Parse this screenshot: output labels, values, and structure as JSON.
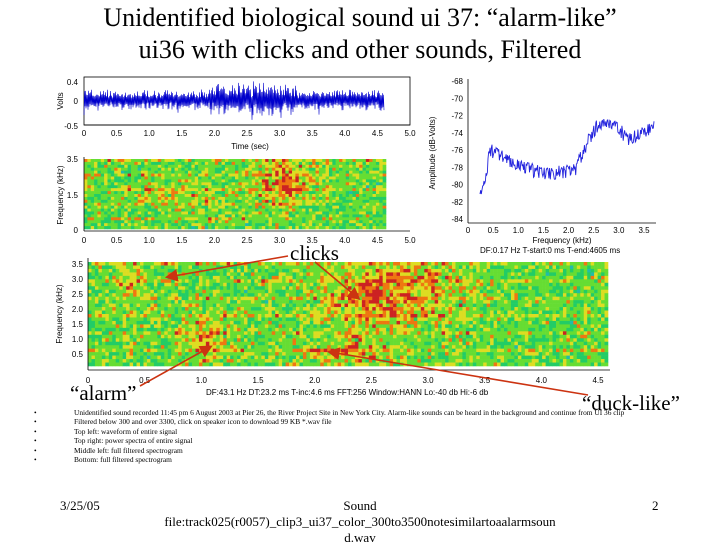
{
  "slide": {
    "title_line1": "Unidentified biological sound ui 37: “alarm-like”",
    "title_line2": "ui36 with clicks and other sounds, Filtered"
  },
  "waveform": {
    "y_ticks": [
      "0.4",
      "0",
      "-0.5"
    ],
    "ylabel": "Volts",
    "x_ticks": [
      "0",
      "0.5",
      "1.0",
      "1.5",
      "2.0",
      "2.5",
      "3.0",
      "3.5",
      "4.0",
      "4.5",
      "5.0"
    ],
    "xlabel": "Time (sec)"
  },
  "spectrogram_small": {
    "y_ticks": [
      "3.5",
      "1.5",
      "0"
    ],
    "ylabel": "Frequency (kHz)",
    "x_ticks": [
      "0",
      "0.5",
      "1.0",
      "1.5",
      "2.0",
      "2.5",
      "3.0",
      "3.5",
      "4.0",
      "4.5",
      "5.0"
    ]
  },
  "power_spectrum": {
    "y_ticks": [
      "-68",
      "-70",
      "-72",
      "-74",
      "-76",
      "-78",
      "-80",
      "-82",
      "-84"
    ],
    "ylabel": "Amplitude (dB-Volts)",
    "x_ticks": [
      "0",
      "0.5",
      "1.0",
      "1.5",
      "2.0",
      "2.5",
      "3.0",
      "3.5"
    ],
    "xlabel": "Frequency (kHz)",
    "info": "DF:0.17 Hz   T-start:0 ms   T-end:4605 ms"
  },
  "spectrogram_big": {
    "y_ticks": [
      "3.5",
      "3.0",
      "2.5",
      "2.0",
      "1.5",
      "1.0",
      "0.5"
    ],
    "ylabel": "Frequency (kHz)",
    "x_ticks": [
      "0",
      "0.5",
      "1.0",
      "1.5",
      "2.0",
      "2.5",
      "3.0",
      "3.5",
      "4.0",
      "4.5"
    ],
    "info": "DF:43.1 Hz   DT:23.2 ms   T-inc:4.6 ms   FFT:256   Window:HANN   Lo:-40 db   Hi:-6 db"
  },
  "annotations": {
    "clicks": "clicks",
    "alarm": "“alarm”",
    "duck": "“duck-like”"
  },
  "bullets": [
    "Unidentified sound recorded 11:45 pm 6 August 2003 at Pier 26, the River Project Site in New York City.  Alarm-like sounds can be heard in the background and continue from UI 36 clip",
    "Filtered below 300 and over 3300, click on speaker icon to download 99 KB *.wav file",
    "Top left: waveform of entire signal",
    "Top right: power spectra of entire signal",
    "Middle left: full filtered spectrogram",
    "Bottom: full filtered spectrogram"
  ],
  "footer": {
    "date": "3/25/05",
    "line1": "Sound",
    "line2": "file:track025(r0057)_clip3_ui37_color_300to3500notesimilartoaalarmsoun",
    "line3": "d.wav",
    "page": "2"
  },
  "colors": {
    "waveform": "#0000cc",
    "spectrum_line": "#2222dd",
    "arrow": "#cc3311",
    "spectro_base": "#22cc44"
  }
}
